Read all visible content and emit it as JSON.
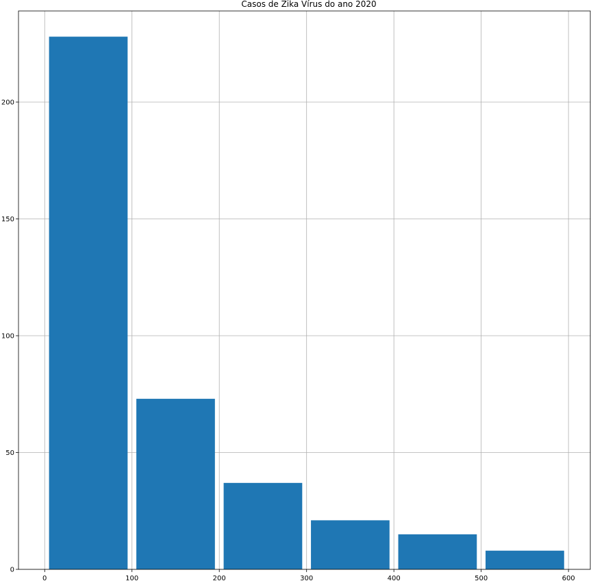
{
  "chart_data": {
    "type": "bar",
    "title": "Casos de Zika Vírus do ano 2020",
    "xlabel": "",
    "ylabel": "",
    "xlim": [
      -30,
      625
    ],
    "ylim": [
      0,
      239
    ],
    "x_ticks": [
      0,
      100,
      200,
      300,
      400,
      500,
      600
    ],
    "y_ticks": [
      0,
      50,
      100,
      150,
      200
    ],
    "grid": true,
    "bar_color": "#1f77b4",
    "bins": [
      {
        "x0": 5,
        "x1": 95,
        "value": 228
      },
      {
        "x0": 105,
        "x1": 195,
        "value": 73
      },
      {
        "x0": 205,
        "x1": 295,
        "value": 37
      },
      {
        "x0": 305,
        "x1": 395,
        "value": 21
      },
      {
        "x0": 405,
        "x1": 495,
        "value": 15
      },
      {
        "x0": 505,
        "x1": 595,
        "value": 8
      }
    ]
  }
}
